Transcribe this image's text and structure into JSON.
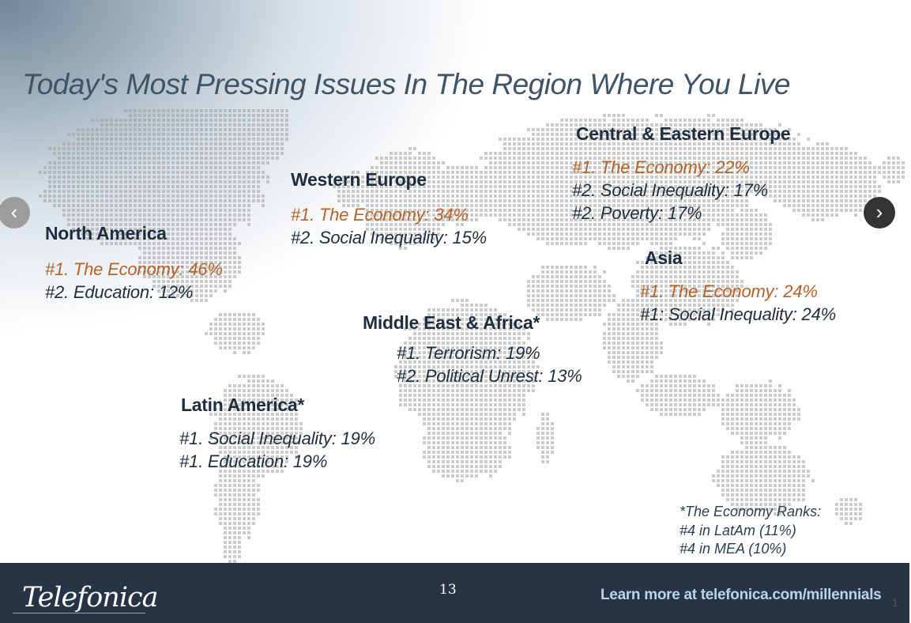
{
  "title": "Today's Most Pressing Issues In The Region Where You Live",
  "colors": {
    "highlight": "#b5622a",
    "dark_text": "#1e2e3f",
    "footer_bg": "#263445",
    "link": "#b9d3ea",
    "map_dots": "#9a9a9a"
  },
  "regions": {
    "north_america": {
      "name": "North America",
      "items": [
        "#1. The Economy: 46%",
        "#2. Education: 12%"
      ]
    },
    "western_europe": {
      "name": "Western Europe",
      "items": [
        "#1. The Economy: 34%",
        "#2. Social Inequality: 15%"
      ]
    },
    "central_eastern_europe": {
      "name": "Central & Eastern Europe",
      "items": [
        "#1. The Economy: 22%",
        "#2. Social Inequality: 17%",
        "#2. Poverty: 17%"
      ]
    },
    "asia": {
      "name": "Asia",
      "items": [
        "#1. The Economy: 24%",
        "#1: Social Inequality: 24%"
      ]
    },
    "middle_east_africa": {
      "name": "Middle East & Africa*",
      "items": [
        "#1. Terrorism: 19%",
        "#2. Political Unrest: 13%"
      ]
    },
    "latin_america": {
      "name": "Latin America*",
      "items": [
        "#1. Social Inequality: 19%",
        "#1. Education: 19%"
      ]
    }
  },
  "footnote": [
    "*The Economy Ranks:",
    "#4 in LatAm (11%)",
    "#4 in MEA (10%)"
  ],
  "nav": {
    "prev_icon": "chevron-left-icon",
    "prev_glyph": "‹",
    "next_icon": "chevron-right-icon",
    "next_glyph": "›"
  },
  "footer": {
    "logo": "Telefonica",
    "page_number": "13",
    "learn_more": "Learn more at telefonica.com/millennials",
    "corner": "1"
  }
}
